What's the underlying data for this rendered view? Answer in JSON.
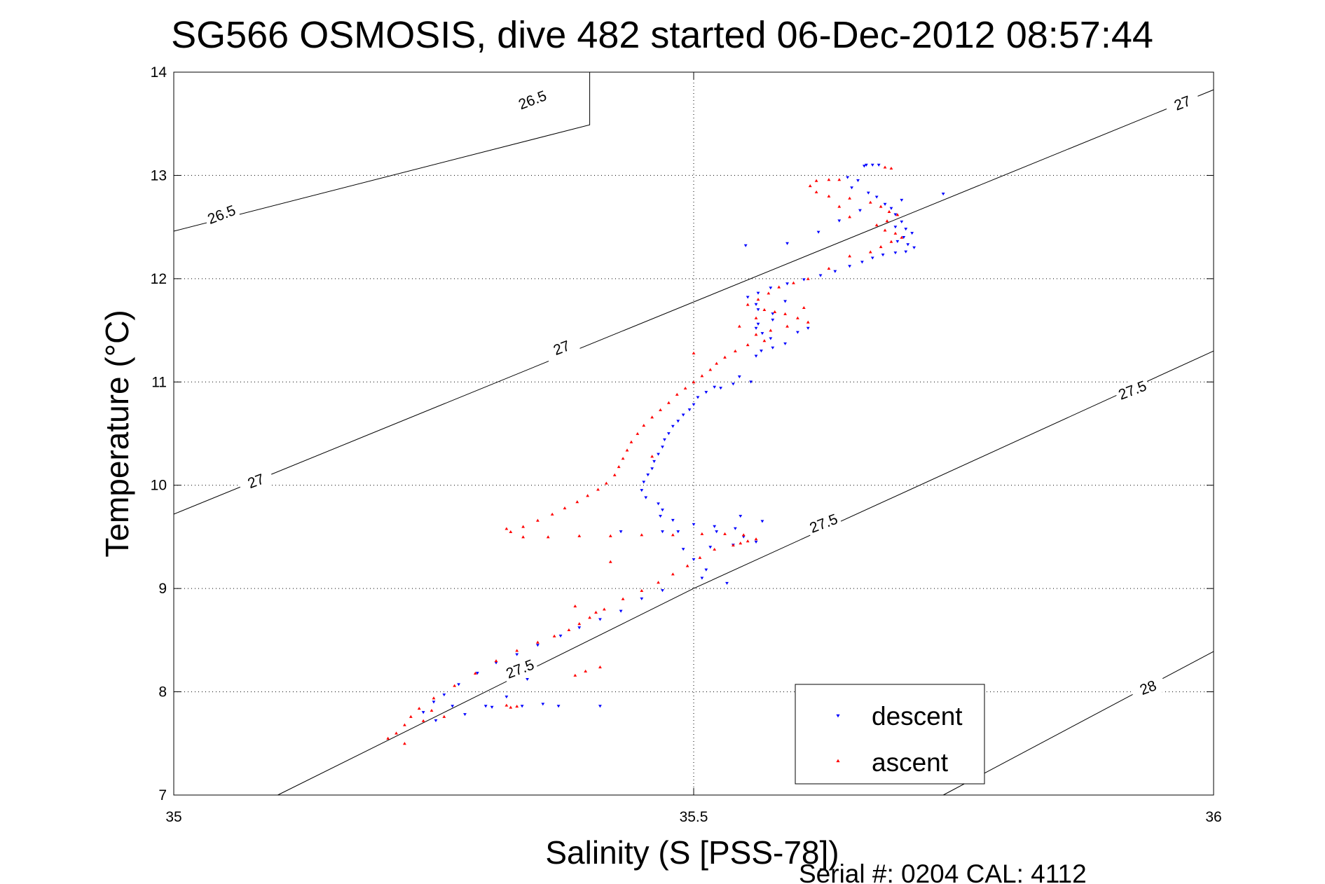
{
  "chart_data": {
    "type": "scatter",
    "title": "SG566 OSMOSIS, dive 482 started 06-Dec-2012 08:57:44",
    "xlabel": "Salinity (S [PSS-78])",
    "ylabel": "Temperature (°C)",
    "xlim": [
      35,
      36
    ],
    "ylim": [
      7,
      14
    ],
    "x_ticks": [
      35,
      35.5,
      36
    ],
    "x_tick_labels": [
      "35",
      "35.5",
      "36"
    ],
    "y_ticks": [
      7,
      8,
      9,
      10,
      11,
      12,
      13,
      14
    ],
    "y_tick_labels": [
      "7",
      "8",
      "9",
      "10",
      "11",
      "12",
      "13",
      "14"
    ],
    "grid": true,
    "legend_position": "bottom-right",
    "footer": "Serial #: 0204  CAL: 4112",
    "contours": [
      {
        "level": "26.5",
        "points": [
          [
            35,
            12.46
          ],
          [
            35.4,
            13.49
          ],
          [
            35.4,
            14.0
          ]
        ],
        "labels": [
          [
            35.046,
            12.62,
            -21
          ],
          [
            35.345,
            13.73,
            -21
          ]
        ]
      },
      {
        "level": "27",
        "points": [
          [
            35,
            9.72
          ],
          [
            36,
            13.83
          ]
        ],
        "labels": [
          [
            35.079,
            10.04,
            -21
          ],
          [
            35.373,
            11.33,
            -21
          ],
          [
            35.97,
            13.7,
            -21
          ]
        ]
      },
      {
        "level": "27.5",
        "points": [
          [
            35.1,
            7.0
          ],
          [
            35.5,
            9.0
          ],
          [
            36,
            11.3
          ]
        ],
        "labels": [
          [
            35.333,
            8.22,
            -21
          ],
          [
            35.625,
            9.63,
            -21
          ],
          [
            35.922,
            10.92,
            -21
          ]
        ]
      },
      {
        "level": "28",
        "points": [
          [
            35.74,
            7.0
          ],
          [
            36,
            8.39
          ]
        ],
        "labels": [
          [
            35.937,
            8.04,
            -21
          ]
        ]
      }
    ],
    "series": [
      {
        "name": "descent",
        "color": "#0000ff",
        "marker": "triangle-down",
        "points": [
          [
            35.666,
            13.1
          ],
          [
            35.672,
            13.1
          ],
          [
            35.678,
            13.1
          ],
          [
            35.664,
            13.09
          ],
          [
            35.648,
            12.98
          ],
          [
            35.658,
            12.95
          ],
          [
            35.652,
            12.88
          ],
          [
            35.668,
            12.83
          ],
          [
            35.676,
            12.79
          ],
          [
            35.684,
            12.72
          ],
          [
            35.69,
            12.68
          ],
          [
            35.694,
            12.62
          ],
          [
            35.7,
            12.55
          ],
          [
            35.694,
            12.5
          ],
          [
            35.704,
            12.48
          ],
          [
            35.71,
            12.44
          ],
          [
            35.702,
            12.4
          ],
          [
            35.696,
            12.36
          ],
          [
            35.706,
            12.33
          ],
          [
            35.712,
            12.3
          ],
          [
            35.704,
            12.26
          ],
          [
            35.694,
            12.25
          ],
          [
            35.682,
            12.23
          ],
          [
            35.672,
            12.2
          ],
          [
            35.662,
            12.16
          ],
          [
            35.65,
            12.12
          ],
          [
            35.636,
            12.07
          ],
          [
            35.622,
            12.03
          ],
          [
            35.606,
            11.99
          ],
          [
            35.59,
            11.95
          ],
          [
            35.574,
            11.91
          ],
          [
            35.562,
            11.86
          ],
          [
            35.552,
            11.82
          ],
          [
            35.588,
            11.78
          ],
          [
            35.56,
            11.75
          ],
          [
            35.562,
            11.7
          ],
          [
            35.576,
            11.66
          ],
          [
            35.576,
            11.6
          ],
          [
            35.562,
            11.56
          ],
          [
            35.56,
            11.52
          ],
          [
            35.566,
            11.47
          ],
          [
            35.574,
            11.42
          ],
          [
            35.588,
            11.37
          ],
          [
            35.576,
            11.33
          ],
          [
            35.565,
            11.3
          ],
          [
            35.56,
            11.25
          ],
          [
            35.555,
            11.0
          ],
          [
            35.538,
            10.98
          ],
          [
            35.526,
            10.94
          ],
          [
            35.512,
            10.9
          ],
          [
            35.504,
            10.85
          ],
          [
            35.5,
            10.78
          ],
          [
            35.496,
            10.73
          ],
          [
            35.49,
            10.68
          ],
          [
            35.485,
            10.62
          ],
          [
            35.48,
            10.57
          ],
          [
            35.476,
            10.5
          ],
          [
            35.472,
            10.44
          ],
          [
            35.47,
            10.37
          ],
          [
            35.466,
            10.3
          ],
          [
            35.462,
            10.23
          ],
          [
            35.46,
            10.16
          ],
          [
            35.456,
            10.1
          ],
          [
            35.452,
            10.03
          ],
          [
            35.45,
            9.95
          ],
          [
            35.454,
            9.88
          ],
          [
            35.466,
            9.82
          ],
          [
            35.47,
            9.76
          ],
          [
            35.468,
            9.7
          ],
          [
            35.48,
            9.66
          ],
          [
            35.5,
            9.62
          ],
          [
            35.52,
            9.6
          ],
          [
            35.54,
            9.58
          ],
          [
            35.545,
            9.7
          ],
          [
            35.566,
            9.65
          ],
          [
            35.522,
            9.55
          ],
          [
            35.548,
            9.5
          ],
          [
            35.56,
            9.45
          ],
          [
            35.538,
            9.42
          ],
          [
            35.516,
            9.4
          ],
          [
            35.49,
            9.38
          ],
          [
            35.47,
            9.55
          ],
          [
            35.5,
            9.28
          ],
          [
            35.512,
            9.18
          ],
          [
            35.508,
            9.1
          ],
          [
            35.532,
            9.05
          ],
          [
            35.47,
            8.98
          ],
          [
            35.45,
            8.9
          ],
          [
            35.43,
            8.78
          ],
          [
            35.41,
            8.7
          ],
          [
            35.39,
            8.62
          ],
          [
            35.372,
            8.54
          ],
          [
            35.35,
            8.45
          ],
          [
            35.33,
            8.36
          ],
          [
            35.31,
            8.28
          ],
          [
            35.292,
            8.18
          ],
          [
            35.274,
            8.07
          ],
          [
            35.26,
            7.97
          ],
          [
            35.25,
            7.9
          ],
          [
            35.24,
            7.8
          ],
          [
            35.268,
            7.86
          ],
          [
            35.3,
            7.86
          ],
          [
            35.335,
            7.86
          ],
          [
            35.37,
            7.86
          ],
          [
            35.41,
            7.86
          ],
          [
            35.252,
            7.72
          ],
          [
            35.28,
            7.78
          ],
          [
            35.306,
            7.85
          ],
          [
            35.32,
            7.95
          ],
          [
            35.34,
            8.12
          ],
          [
            35.355,
            7.88
          ],
          [
            35.55,
            12.32
          ],
          [
            35.59,
            12.34
          ],
          [
            35.62,
            12.45
          ],
          [
            35.64,
            12.56
          ],
          [
            35.66,
            12.66
          ],
          [
            35.7,
            12.76
          ],
          [
            35.74,
            12.82
          ],
          [
            35.52,
            10.95
          ],
          [
            35.544,
            11.05
          ],
          [
            35.6,
            11.48
          ],
          [
            35.61,
            11.52
          ],
          [
            35.485,
            9.55
          ],
          [
            35.43,
            9.55
          ]
        ]
      },
      {
        "name": "ascent",
        "color": "#ff0000",
        "marker": "triangle-up",
        "points": [
          [
            35.684,
            13.08
          ],
          [
            35.69,
            13.07
          ],
          [
            35.618,
            12.95
          ],
          [
            35.63,
            12.96
          ],
          [
            35.64,
            12.96
          ],
          [
            35.612,
            12.9
          ],
          [
            35.618,
            12.84
          ],
          [
            35.63,
            12.8
          ],
          [
            35.65,
            12.78
          ],
          [
            35.67,
            12.74
          ],
          [
            35.68,
            12.7
          ],
          [
            35.688,
            12.65
          ],
          [
            35.696,
            12.62
          ],
          [
            35.686,
            12.56
          ],
          [
            35.676,
            12.52
          ],
          [
            35.684,
            12.47
          ],
          [
            35.694,
            12.44
          ],
          [
            35.7,
            12.4
          ],
          [
            35.69,
            12.36
          ],
          [
            35.68,
            12.31
          ],
          [
            35.67,
            12.26
          ],
          [
            35.65,
            12.22
          ],
          [
            35.63,
            12.1
          ],
          [
            35.61,
            12.0
          ],
          [
            35.596,
            11.96
          ],
          [
            35.582,
            11.92
          ],
          [
            35.572,
            11.86
          ],
          [
            35.562,
            11.8
          ],
          [
            35.552,
            11.75
          ],
          [
            35.568,
            11.7
          ],
          [
            35.588,
            11.66
          ],
          [
            35.6,
            11.62
          ],
          [
            35.61,
            11.58
          ],
          [
            35.59,
            11.54
          ],
          [
            35.574,
            11.5
          ],
          [
            35.56,
            11.46
          ],
          [
            35.568,
            11.4
          ],
          [
            35.552,
            11.36
          ],
          [
            35.54,
            11.3
          ],
          [
            35.53,
            11.24
          ],
          [
            35.522,
            11.18
          ],
          [
            35.516,
            11.12
          ],
          [
            35.508,
            11.06
          ],
          [
            35.5,
            11.0
          ],
          [
            35.492,
            10.94
          ],
          [
            35.484,
            10.88
          ],
          [
            35.476,
            10.8
          ],
          [
            35.468,
            10.73
          ],
          [
            35.46,
            10.66
          ],
          [
            35.452,
            10.58
          ],
          [
            35.446,
            10.5
          ],
          [
            35.44,
            10.42
          ],
          [
            35.436,
            10.34
          ],
          [
            35.432,
            10.26
          ],
          [
            35.428,
            10.18
          ],
          [
            35.424,
            10.1
          ],
          [
            35.416,
            10.02
          ],
          [
            35.408,
            9.96
          ],
          [
            35.398,
            9.9
          ],
          [
            35.388,
            9.84
          ],
          [
            35.376,
            9.78
          ],
          [
            35.364,
            9.72
          ],
          [
            35.35,
            9.66
          ],
          [
            35.336,
            9.6
          ],
          [
            35.324,
            9.55
          ],
          [
            35.32,
            9.58
          ],
          [
            35.336,
            9.5
          ],
          [
            35.36,
            9.5
          ],
          [
            35.39,
            9.51
          ],
          [
            35.42,
            9.51
          ],
          [
            35.45,
            9.52
          ],
          [
            35.48,
            9.52
          ],
          [
            35.508,
            9.53
          ],
          [
            35.53,
            9.53
          ],
          [
            35.548,
            9.52
          ],
          [
            35.552,
            9.46
          ],
          [
            35.538,
            9.42
          ],
          [
            35.52,
            9.38
          ],
          [
            35.506,
            9.3
          ],
          [
            35.494,
            9.22
          ],
          [
            35.48,
            9.14
          ],
          [
            35.466,
            9.06
          ],
          [
            35.45,
            8.98
          ],
          [
            35.432,
            8.9
          ],
          [
            35.414,
            8.8
          ],
          [
            35.4,
            8.72
          ],
          [
            35.39,
            8.66
          ],
          [
            35.38,
            8.6
          ],
          [
            35.366,
            8.54
          ],
          [
            35.35,
            8.48
          ],
          [
            35.33,
            8.4
          ],
          [
            35.31,
            8.3
          ],
          [
            35.29,
            8.18
          ],
          [
            35.27,
            8.06
          ],
          [
            35.25,
            7.94
          ],
          [
            35.236,
            7.84
          ],
          [
            35.228,
            7.76
          ],
          [
            35.222,
            7.68
          ],
          [
            35.214,
            7.6
          ],
          [
            35.206,
            7.55
          ],
          [
            35.248,
            7.82
          ],
          [
            35.26,
            7.76
          ],
          [
            35.24,
            7.72
          ],
          [
            35.32,
            7.87
          ],
          [
            35.324,
            7.85
          ],
          [
            35.33,
            7.86
          ],
          [
            35.406,
            8.77
          ],
          [
            35.386,
            8.83
          ],
          [
            35.41,
            8.24
          ],
          [
            35.396,
            8.2
          ],
          [
            35.386,
            8.16
          ],
          [
            35.222,
            7.5
          ],
          [
            35.56,
            11.62
          ],
          [
            35.578,
            11.68
          ],
          [
            35.606,
            11.72
          ],
          [
            35.544,
            11.54
          ],
          [
            35.64,
            12.7
          ],
          [
            35.65,
            12.6
          ],
          [
            35.5,
            11.28
          ],
          [
            35.46,
            10.28
          ],
          [
            35.545,
            9.44
          ],
          [
            35.56,
            9.48
          ],
          [
            35.42,
            9.26
          ]
        ]
      }
    ]
  }
}
